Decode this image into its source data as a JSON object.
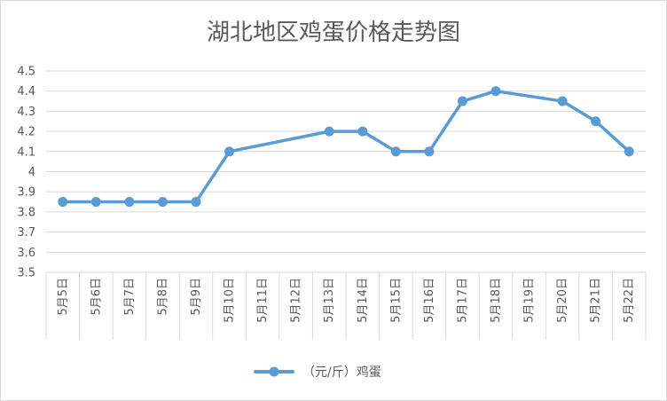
{
  "chart_data": {
    "type": "line",
    "title": "湖北地区鸡蛋价格走势图",
    "xlabel": "",
    "ylabel": "",
    "categories": [
      "5月5日",
      "5月6日",
      "5月7日",
      "5月8日",
      "5月9日",
      "5月10日",
      "5月11日",
      "5月12日",
      "5月13日",
      "5月14日",
      "5月15日",
      "5月16日",
      "5月17日",
      "5月18日",
      "5月19日",
      "5月20日",
      "5月21日",
      "5月22日"
    ],
    "series": [
      {
        "name": "（元/斤）鸡蛋",
        "color": "#5b9bd5",
        "values": [
          3.85,
          3.85,
          3.85,
          3.85,
          3.85,
          4.1,
          null,
          null,
          4.2,
          4.2,
          4.1,
          4.1,
          4.35,
          4.4,
          null,
          4.35,
          4.25,
          4.1
        ]
      }
    ],
    "ylim": [
      3.5,
      4.5
    ],
    "yticks": [
      "3.5",
      "3.6",
      "3.7",
      "3.8",
      "3.9",
      "4",
      "4.1",
      "4.2",
      "4.3",
      "4.4",
      "4.5"
    ],
    "grid": true,
    "legend": "bottom",
    "gridline_color": "#d9d9d9"
  }
}
